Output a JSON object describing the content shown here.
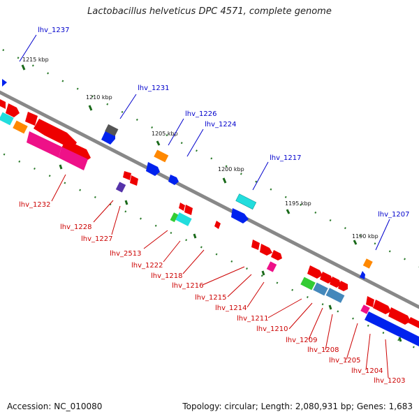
{
  "title": "Lactobacillus helveticus DPC 4571, complete genome",
  "footer": {
    "accession": "Accession: NC_010080",
    "summary": "Topology: circular; Length: 2,080,931 bp; Genes: 1,683"
  },
  "colors": {
    "forward_label": "#0000cc",
    "reverse_label": "#cc0000",
    "backbone": "#888888",
    "tick": "#2a7a2a"
  },
  "kbp_labels": [
    "1215 kbp",
    "1210 kbp",
    "1205 kbp",
    "1200 kbp",
    "1195 kbp",
    "1190 kbp"
  ],
  "forward_gene_labels": [
    "lhv_1237",
    "lhv_1231",
    "lhv_1226",
    "lhv_1224",
    "lhv_1217",
    "lhv_1207"
  ],
  "reverse_gene_labels": [
    "lhv_1232",
    "lhv_1228",
    "lhv_1227",
    "lhv_2513",
    "lhv_1222",
    "lhv_1218",
    "lhv_1216",
    "lhv_1215",
    "lhv_1214",
    "lhv_1211",
    "lhv_1210",
    "lhv_1209",
    "lhv_1208",
    "lhv_1205",
    "lhv_1204",
    "lhv_1203"
  ]
}
